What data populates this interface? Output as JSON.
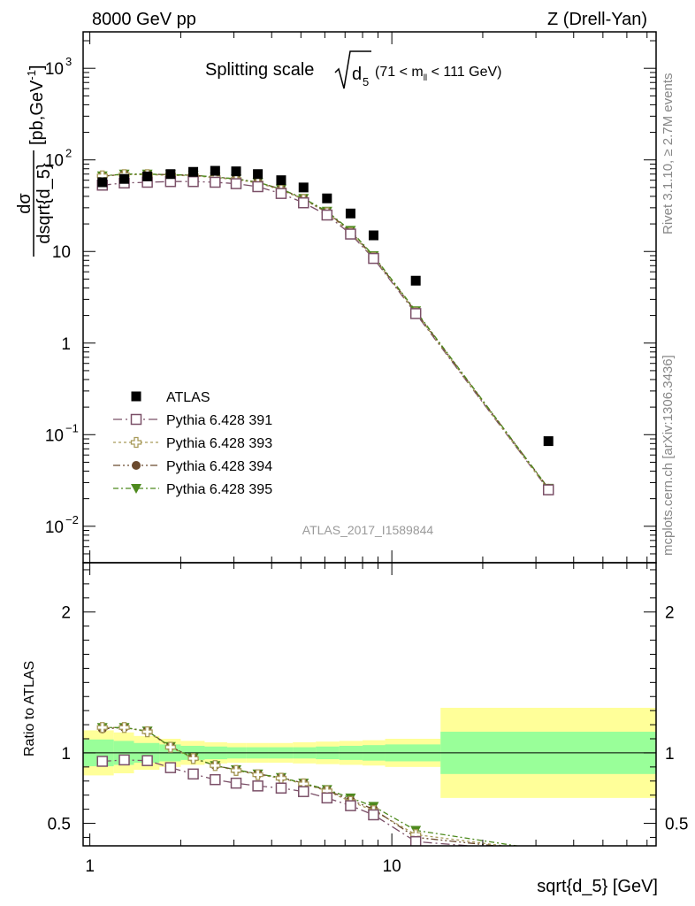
{
  "header": {
    "left": "8000 GeV pp",
    "right": "Z (Drell-Yan)"
  },
  "side_labels": {
    "rivet": "Rivet 3.1.10, ≥ 2.7M events",
    "mcplots": "mcplots.cern.ch [arXiv:1306.3436]"
  },
  "watermark": "ATLAS_2017_I1589844",
  "chart_data": [
    {
      "type": "scatter",
      "panel": "main",
      "title": {
        "main": "Splitting scale",
        "sub": "5",
        "cut": "(71 < m",
        "cut_sub": "ll",
        "cut_end": " < 111 GeV)"
      },
      "ylabel": {
        "num": "dσ",
        "den": "dsqrt{d_5}",
        "unit": "[pb,GeV",
        "unit_sup": "-1",
        "unit_end": "]"
      },
      "xscale": "log",
      "yscale": "log",
      "xlim": [
        0.95,
        75
      ],
      "ylim": [
        0.004,
        2500
      ],
      "y_ticks": [
        {
          "value": 0.01,
          "base": "10",
          "exp": "−2"
        },
        {
          "value": 0.1,
          "base": "10",
          "exp": "−1"
        },
        {
          "value": 1,
          "base": "1",
          "exp": ""
        },
        {
          "value": 10,
          "base": "10",
          "exp": ""
        },
        {
          "value": 100,
          "base": "10",
          "exp": "2"
        },
        {
          "value": 1000,
          "base": "10",
          "exp": "3"
        }
      ],
      "legend_position": "lower-left",
      "series": [
        {
          "name": "ATLAS",
          "color": "#000000",
          "marker": "filled-square",
          "x": [
            1.1,
            1.3,
            1.55,
            1.85,
            2.2,
            2.6,
            3.05,
            3.6,
            4.3,
            5.1,
            6.1,
            7.3,
            8.7,
            12.0,
            33.0
          ],
          "y": [
            57,
            62,
            66,
            70,
            74,
            76,
            75,
            70,
            60,
            50,
            38,
            26,
            15,
            4.8,
            0.085
          ]
        },
        {
          "name": "Pythia 6.428 391",
          "color": "#7b5068",
          "marker": "open-square",
          "x": [
            1.1,
            1.3,
            1.55,
            1.85,
            2.2,
            2.6,
            3.05,
            3.6,
            4.3,
            5.1,
            6.1,
            7.3,
            8.7,
            12.0,
            33.0
          ],
          "y": [
            53,
            56,
            57,
            58,
            58,
            57,
            55,
            51,
            43,
            34,
            25,
            15.5,
            8.4,
            2.1,
            0.025
          ]
        },
        {
          "name": "Pythia 6.428 393",
          "color": "#a89a5a",
          "marker": "open-cross",
          "x": [
            1.1,
            1.3,
            1.55,
            1.85,
            2.2,
            2.6,
            3.05,
            3.6,
            4.3,
            5.1,
            6.1,
            7.3,
            8.7,
            12.0,
            33.0
          ],
          "y": [
            67,
            69,
            69,
            68,
            67,
            64,
            61,
            56,
            47,
            37,
            26.5,
            16,
            8.6,
            2.15,
            0.025
          ]
        },
        {
          "name": "Pythia 6.428 394",
          "color": "#6b4a2e",
          "marker": "filled-circle",
          "x": [
            1.1,
            1.3,
            1.55,
            1.85,
            2.2,
            2.6,
            3.05,
            3.6,
            4.3,
            5.1,
            6.1,
            7.3,
            8.7,
            12.0,
            33.0
          ],
          "y": [
            66,
            70,
            70,
            69,
            68,
            65,
            62,
            57,
            48,
            37.5,
            27,
            16.5,
            8.8,
            2.2,
            0.026
          ]
        },
        {
          "name": "Pythia 6.428 395",
          "color": "#4e8a1e",
          "marker": "filled-triangle-down",
          "x": [
            1.1,
            1.3,
            1.55,
            1.85,
            2.2,
            2.6,
            3.05,
            3.6,
            4.3,
            5.1,
            6.1,
            7.3,
            8.7,
            12.0,
            33.0
          ],
          "y": [
            67,
            70,
            70,
            69,
            68,
            65,
            62,
            57,
            48,
            38,
            27.5,
            17,
            9.0,
            2.25,
            0.026
          ]
        }
      ]
    },
    {
      "type": "line",
      "panel": "ratio",
      "ylabel": "Ratio to ATLAS",
      "xlabel": "sqrt{d_5} [GeV]",
      "xscale": "log",
      "xlim": [
        0.95,
        75
      ],
      "ylim": [
        0.34,
        2.35
      ],
      "y_ticks": [
        0.5,
        1,
        2
      ],
      "y_tick_labels": [
        "0.5",
        "1",
        "2"
      ],
      "x_ticks": [
        1,
        10
      ],
      "x_tick_labels": [
        "1",
        "10"
      ],
      "reference_line": 1,
      "bands": {
        "edges": [
          0.95,
          1.2,
          1.4,
          1.7,
          2.0,
          2.4,
          2.85,
          3.3,
          3.9,
          4.7,
          5.6,
          6.7,
          8.0,
          9.5,
          14.5,
          75
        ],
        "inner": [
          0.095,
          0.085,
          0.07,
          0.06,
          0.05,
          0.045,
          0.04,
          0.04,
          0.04,
          0.04,
          0.045,
          0.05,
          0.055,
          0.06,
          0.15
        ],
        "outer": [
          0.16,
          0.145,
          0.12,
          0.1,
          0.085,
          0.075,
          0.07,
          0.07,
          0.07,
          0.075,
          0.08,
          0.085,
          0.09,
          0.1,
          0.32
        ],
        "inner_color": "#99ff99",
        "outer_color": "#ffff99"
      },
      "series": [
        {
          "name": "Pythia 6.428 391",
          "color": "#7b5068",
          "marker": "open-square",
          "x": [
            1.1,
            1.3,
            1.55,
            1.85,
            2.2,
            2.6,
            3.05,
            3.6,
            4.3,
            5.1,
            6.1,
            7.3,
            8.7,
            12.0,
            33.0
          ],
          "y": [
            0.94,
            0.95,
            0.945,
            0.895,
            0.85,
            0.81,
            0.785,
            0.765,
            0.75,
            0.725,
            0.68,
            0.625,
            0.56,
            0.37,
            0.295
          ]
        },
        {
          "name": "Pythia 6.428 393",
          "color": "#a89a5a",
          "marker": "open-cross",
          "x": [
            1.1,
            1.3,
            1.55,
            1.85,
            2.2,
            2.6,
            3.05,
            3.6,
            4.3,
            5.1,
            6.1,
            7.3,
            8.7,
            12.0,
            33.0
          ],
          "y": [
            1.18,
            1.18,
            1.15,
            1.04,
            0.96,
            0.91,
            0.875,
            0.845,
            0.82,
            0.78,
            0.73,
            0.655,
            0.59,
            0.42,
            0.3
          ]
        },
        {
          "name": "Pythia 6.428 394",
          "color": "#6b4a2e",
          "marker": "filled-circle",
          "x": [
            1.1,
            1.3,
            1.55,
            1.85,
            2.2,
            2.6,
            3.05,
            3.6,
            4.3,
            5.1,
            6.1,
            7.3,
            8.7,
            12.0,
            33.0
          ],
          "y": [
            1.17,
            1.18,
            1.155,
            1.045,
            0.965,
            0.91,
            0.88,
            0.85,
            0.825,
            0.785,
            0.735,
            0.665,
            0.6,
            0.4,
            0.3
          ]
        },
        {
          "name": "Pythia 6.428 395",
          "color": "#4e8a1e",
          "marker": "filled-triangle-down",
          "x": [
            1.1,
            1.3,
            1.55,
            1.85,
            2.2,
            2.6,
            3.05,
            3.6,
            4.3,
            5.1,
            6.1,
            7.3,
            8.7,
            12.0,
            33.0
          ],
          "y": [
            1.18,
            1.18,
            1.155,
            1.045,
            0.965,
            0.91,
            0.88,
            0.85,
            0.825,
            0.785,
            0.74,
            0.68,
            0.62,
            0.45,
            0.305
          ]
        }
      ]
    }
  ]
}
